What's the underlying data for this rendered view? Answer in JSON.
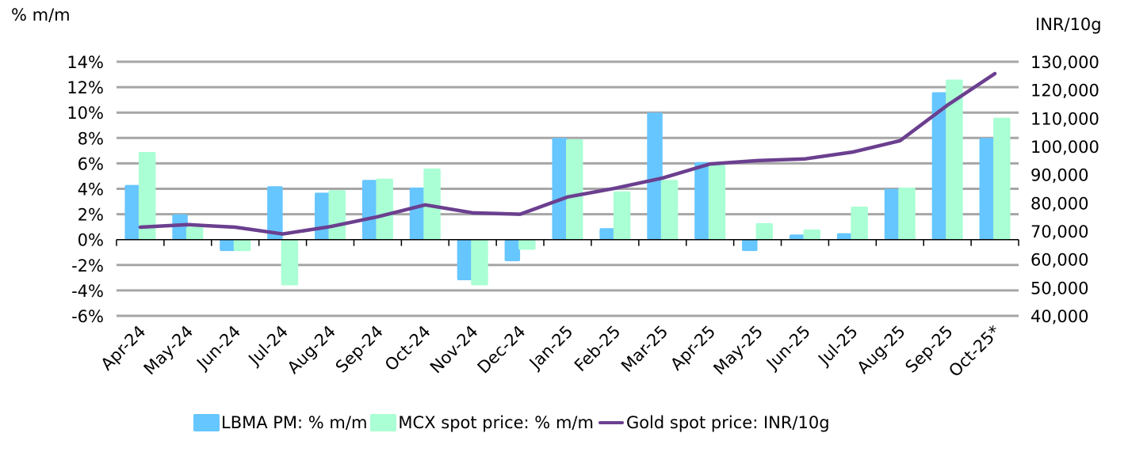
{
  "chart_data": {
    "type": "bar",
    "title": "",
    "left_axis_label": "% m/m",
    "right_axis_label": "INR/10g",
    "xlabel": "",
    "categories": [
      "Apr-24",
      "May-24",
      "Jun-24",
      "Jul-24",
      "Aug-24",
      "Sep-24",
      "Oct-24",
      "Nov-24",
      "Dec-24",
      "Jan-25",
      "Feb-25",
      "Mar-25",
      "Apr-25",
      "May-25",
      "Jun-25",
      "Jul-25",
      "Aug-25",
      "Sep-25",
      "Oct-25*"
    ],
    "left_axis": {
      "ylim": [
        -6,
        14
      ],
      "ticks": [
        14,
        12,
        10,
        8,
        6,
        4,
        2,
        0,
        -2,
        -4,
        -6
      ],
      "tick_labels": [
        "14%",
        "12%",
        "10%",
        "8%",
        "6%",
        "4%",
        "2%",
        "0%",
        "-2%",
        "-4%",
        "-6%"
      ]
    },
    "right_axis": {
      "ylim": [
        40000,
        130000
      ],
      "ticks": [
        130000,
        120000,
        110000,
        100000,
        90000,
        80000,
        70000,
        60000,
        50000,
        40000
      ],
      "tick_labels": [
        "130,000",
        "120,000",
        "110,000",
        "100,000",
        "90,000",
        "80,000",
        "70,000",
        "60,000",
        "50,000",
        "40,000"
      ]
    },
    "grid": true,
    "legend_position": "bottom",
    "series": [
      {
        "name": "LBMA PM: % m/m",
        "type": "bar",
        "axis": "left",
        "color": "#66c6ff",
        "values": [
          4.3,
          2.0,
          -0.9,
          4.2,
          3.7,
          4.7,
          4.1,
          -3.2,
          -1.7,
          8.0,
          0.9,
          10.0,
          6.1,
          -0.9,
          0.4,
          0.5,
          4.0,
          11.6,
          8.0
        ]
      },
      {
        "name": "MCX spot price: % m/m",
        "type": "bar",
        "axis": "left",
        "color": "#aaffd4",
        "values": [
          6.9,
          1.0,
          -0.9,
          -3.6,
          3.9,
          4.8,
          5.6,
          -3.6,
          -0.8,
          7.9,
          3.8,
          4.7,
          5.9,
          1.3,
          0.8,
          2.6,
          4.1,
          12.6,
          9.6
        ]
      },
      {
        "name": "Gold spot price: INR/10g",
        "type": "line",
        "axis": "right",
        "color": "#6b3f8f",
        "values": [
          71400,
          72300,
          71400,
          69000,
          71600,
          75100,
          79300,
          76500,
          76000,
          82100,
          85200,
          88800,
          93800,
          95000,
          95600,
          98000,
          102000,
          114600,
          125800
        ]
      }
    ]
  },
  "colors": {
    "gridline": "#a6a6a6",
    "axis": "#000000"
  }
}
